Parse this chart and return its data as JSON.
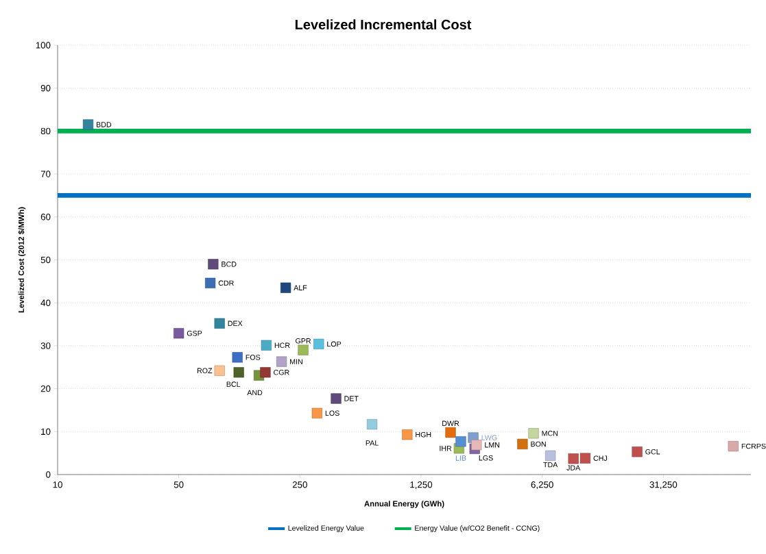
{
  "chart_data": {
    "type": "scatter",
    "title": "Levelized Incremental Cost",
    "xlabel": "Annual Energy (GWh)",
    "ylabel": "Levelized Cost (2012 $/MWh)",
    "log": "x",
    "xlim": [
      10,
      100000
    ],
    "ylim": [
      0,
      100
    ],
    "xticks": [
      10,
      50,
      250,
      {
        "value": 1250,
        "label": "1,250"
      },
      {
        "value": 6250,
        "label": "6,250"
      },
      {
        "value": 31250,
        "label": "31,250"
      }
    ],
    "yticks": [
      0,
      10,
      20,
      30,
      40,
      50,
      60,
      70,
      80,
      90,
      100
    ],
    "grid": "y",
    "legend": "bottom",
    "marker": "square",
    "series": [
      {
        "name": "BDD",
        "color": "#31859c",
        "x": [
          15
        ],
        "values": [
          81.5
        ]
      },
      {
        "name": "BCD",
        "color": "#604a7b",
        "x": [
          79
        ],
        "values": [
          49
        ]
      },
      {
        "name": "CDR",
        "color": "#3c6eb4",
        "x": [
          76
        ],
        "values": [
          44.6
        ]
      },
      {
        "name": "ALF",
        "color": "#1f497d",
        "x": [
          207
        ],
        "values": [
          43.5
        ]
      },
      {
        "name": "DEX",
        "color": "#31859c",
        "x": [
          86
        ],
        "values": [
          35.2
        ]
      },
      {
        "name": "GSP",
        "color": "#7a5a9e",
        "x": [
          50
        ],
        "values": [
          32.9
        ]
      },
      {
        "name": "HCR",
        "color": "#4bacc6",
        "x": [
          160
        ],
        "values": [
          30.1
        ]
      },
      {
        "name": "LOP",
        "color": "#5bc0de",
        "x": [
          321
        ],
        "values": [
          30.4
        ]
      },
      {
        "name": "GPR",
        "color": "#9bbb59",
        "x": [
          261
        ],
        "values": [
          29
        ]
      },
      {
        "name": "FOS",
        "color": "#3b6fc4",
        "x": [
          109
        ],
        "values": [
          27.3
        ]
      },
      {
        "name": "MIN",
        "color": "#b3a2c7",
        "x": [
          196
        ],
        "values": [
          26.3
        ]
      },
      {
        "name": "ROZ",
        "color": "#fac090",
        "x": [
          86
        ],
        "values": [
          24.2
        ]
      },
      {
        "name": "BCL",
        "color": "#4f6228",
        "x": [
          111
        ],
        "values": [
          23.8
        ]
      },
      {
        "name": "AND",
        "color": "#77933c",
        "x": [
          145
        ],
        "values": [
          23.1
        ]
      },
      {
        "name": "CGR",
        "color": "#953735",
        "x": [
          158
        ],
        "values": [
          23.8
        ]
      },
      {
        "name": "DET",
        "color": "#604a7b",
        "x": [
          404
        ],
        "values": [
          17.7
        ]
      },
      {
        "name": "LOS",
        "color": "#f79646",
        "x": [
          314
        ],
        "values": [
          14.3
        ]
      },
      {
        "name": "PAL",
        "color": "#93cddd",
        "x": [
          652
        ],
        "values": [
          11.7
        ]
      },
      {
        "name": "HGH",
        "color": "#f79646",
        "x": [
          1040
        ],
        "values": [
          9.3
        ]
      },
      {
        "name": "DWR",
        "color": "#e46c0a",
        "x": [
          1850
        ],
        "values": [
          9.8
        ]
      },
      {
        "name": "IHR",
        "color": "#9bbb59",
        "x": [
          2070
        ],
        "values": [
          6.1
        ]
      },
      {
        "name": "LIB",
        "color": "#558ed5",
        "x": [
          2120
        ],
        "values": [
          7.7
        ]
      },
      {
        "name": "LWG",
        "color": "#7f9fcf",
        "x": [
          2500
        ],
        "values": [
          8.6
        ]
      },
      {
        "name": "LGS",
        "color": "#8064a2",
        "x": [
          2550
        ],
        "values": [
          6
        ]
      },
      {
        "name": "LMN",
        "color": "#e6b9b8",
        "x": [
          2610
        ],
        "values": [
          6.9
        ]
      },
      {
        "name": "BON",
        "color": "#d0700f",
        "x": [
          4810
        ],
        "values": [
          7.1
        ]
      },
      {
        "name": "MCN",
        "color": "#c3d69b",
        "x": [
          5570
        ],
        "values": [
          9.6
        ]
      },
      {
        "name": "TDA",
        "color": "#b7c1dd",
        "x": [
          6970
        ],
        "values": [
          4.4
        ]
      },
      {
        "name": "JDA",
        "color": "#c0504d",
        "x": [
          9460
        ],
        "values": [
          3.7
        ]
      },
      {
        "name": "CHJ",
        "color": "#c0504d",
        "x": [
          11070
        ],
        "values": [
          3.8
        ]
      },
      {
        "name": "GCL",
        "color": "#c0504d",
        "x": [
          22060
        ],
        "values": [
          5.3
        ]
      },
      {
        "name": "FCRPS",
        "color": "#d9a8a8",
        "x": [
          79100
        ],
        "values": [
          6.6
        ]
      },
      {
        "name": "Levelized Energy Value",
        "type": "line",
        "marker": "none",
        "color": "#0070c0",
        "x": [
          10,
          100000
        ],
        "values": [
          65,
          65
        ]
      },
      {
        "name": "Energy Value  (w/CO2 Benefit - CCNG)",
        "type": "line",
        "marker": "none",
        "color": "#00b050",
        "x": [
          10,
          100000
        ],
        "values": [
          80,
          80
        ]
      }
    ]
  }
}
